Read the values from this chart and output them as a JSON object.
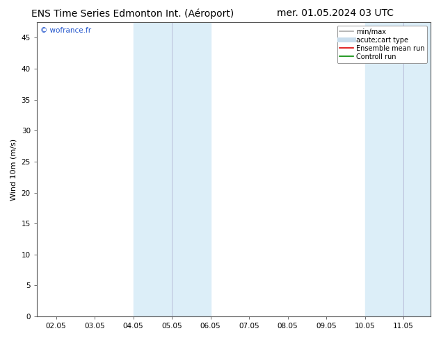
{
  "title_left": "ENS Time Series Edmonton Int. (Aéroport)",
  "title_right": "mer. 01.05.2024 03 UTC",
  "ylabel": "Wind 10m (m/s)",
  "ylim": [
    0,
    47.5
  ],
  "yticks": [
    0,
    5,
    10,
    15,
    20,
    25,
    30,
    35,
    40,
    45
  ],
  "xtick_labels": [
    "02.05",
    "03.05",
    "04.05",
    "05.05",
    "06.05",
    "07.05",
    "08.05",
    "09.05",
    "10.05",
    "11.05"
  ],
  "shade_bands": [
    {
      "xmin": 2,
      "xmax": 3,
      "color": "#dceef8"
    },
    {
      "xmin": 3,
      "xmax": 4,
      "color": "#dceef8"
    },
    {
      "xmin": 8,
      "xmax": 9,
      "color": "#dceef8"
    },
    {
      "xmin": 9,
      "xmax": 10,
      "color": "#dceef8"
    }
  ],
  "shade_dividers": [
    3,
    9
  ],
  "legend_entries": [
    {
      "label": "min/max",
      "color": "#aaaaaa",
      "lw": 1.2
    },
    {
      "label": "acute;cart type",
      "color": "#c8dded",
      "lw": 5
    },
    {
      "label": "Ensemble mean run",
      "color": "#dd0000",
      "lw": 1.2
    },
    {
      "label": "Controll run",
      "color": "#008800",
      "lw": 1.2
    }
  ],
  "watermark": "© wofrance.fr",
  "watermark_color": "#2255cc",
  "background_color": "#ffffff",
  "border_color": "#555555",
  "title_fontsize": 10,
  "tick_fontsize": 7.5,
  "ylabel_fontsize": 8,
  "legend_fontsize": 7
}
